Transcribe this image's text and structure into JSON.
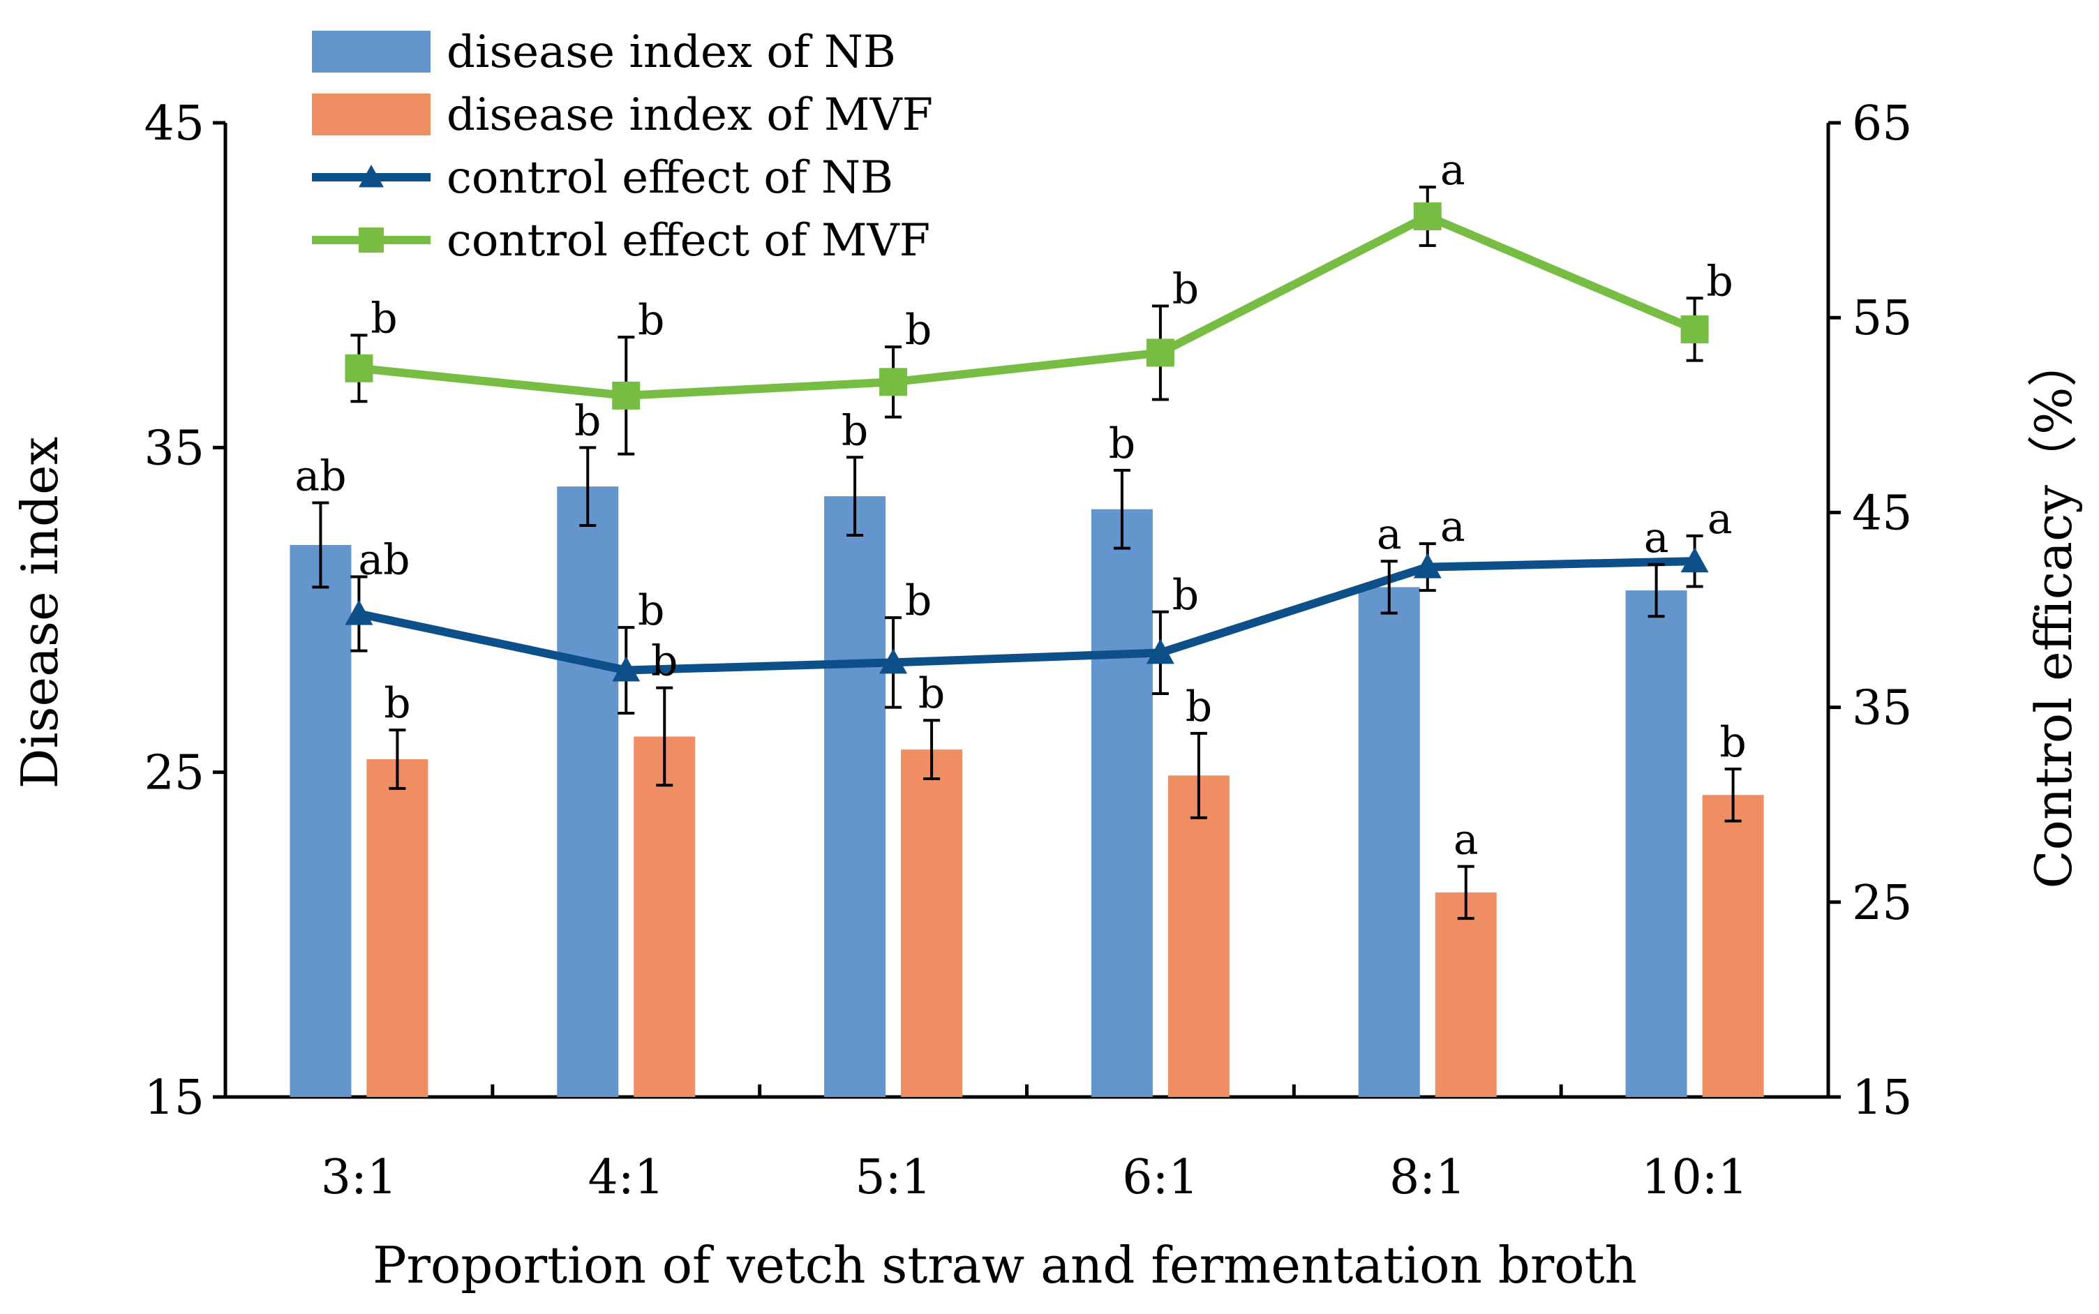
{
  "chart_data": {
    "type": "bar+line",
    "categories": [
      "3:1",
      "4:1",
      "5:1",
      "6:1",
      "8:1",
      "10:1"
    ],
    "xlabel": "Proportion of vetch straw and fermentation broth",
    "ylabel": "Disease index",
    "y2label": "Control efficacy（%）",
    "ylim": [
      15,
      45
    ],
    "yticks": [
      "15",
      "25",
      "35",
      "45"
    ],
    "y2lim": [
      15,
      65
    ],
    "y2ticks": [
      "15",
      "25",
      "35",
      "45",
      "55",
      "65"
    ],
    "legend_position": "top-left",
    "grid": false,
    "series": [
      {
        "name": "disease index of NB",
        "kind": "bar",
        "axis": "left",
        "color": "#6495cc",
        "values": [
          32.0,
          33.8,
          33.5,
          33.1,
          30.7,
          30.6
        ],
        "errors": [
          1.3,
          1.2,
          1.2,
          1.2,
          0.8,
          0.8
        ],
        "labels": [
          "ab",
          "b",
          "b",
          "b",
          "a",
          "a"
        ]
      },
      {
        "name": "disease index of MVF",
        "kind": "bar",
        "axis": "left",
        "color": "#ef8d63",
        "values": [
          25.4,
          26.1,
          25.7,
          24.9,
          21.3,
          24.3
        ],
        "errors": [
          0.9,
          1.5,
          0.9,
          1.3,
          0.8,
          0.8
        ],
        "labels": [
          "b",
          "b",
          "b",
          "b",
          "a",
          "b"
        ]
      },
      {
        "name": "control effect of NB",
        "kind": "line",
        "axis": "right",
        "color": "#0d5089",
        "marker": "triangle",
        "values": [
          39.8,
          36.9,
          37.3,
          37.8,
          42.2,
          42.5
        ],
        "errors": [
          1.9,
          2.2,
          2.3,
          2.1,
          1.2,
          1.3
        ],
        "labels": [
          "ab",
          "b",
          "b",
          "b",
          "a",
          "a"
        ]
      },
      {
        "name": "control effect of MVF",
        "kind": "line",
        "axis": "right",
        "color": "#77bd43",
        "marker": "square",
        "values": [
          52.4,
          51.0,
          51.7,
          53.2,
          60.2,
          54.4
        ],
        "errors": [
          1.7,
          3.0,
          1.8,
          2.4,
          1.5,
          1.6
        ],
        "labels": [
          "b",
          "b",
          "b",
          "b",
          "a",
          "b"
        ]
      }
    ]
  }
}
